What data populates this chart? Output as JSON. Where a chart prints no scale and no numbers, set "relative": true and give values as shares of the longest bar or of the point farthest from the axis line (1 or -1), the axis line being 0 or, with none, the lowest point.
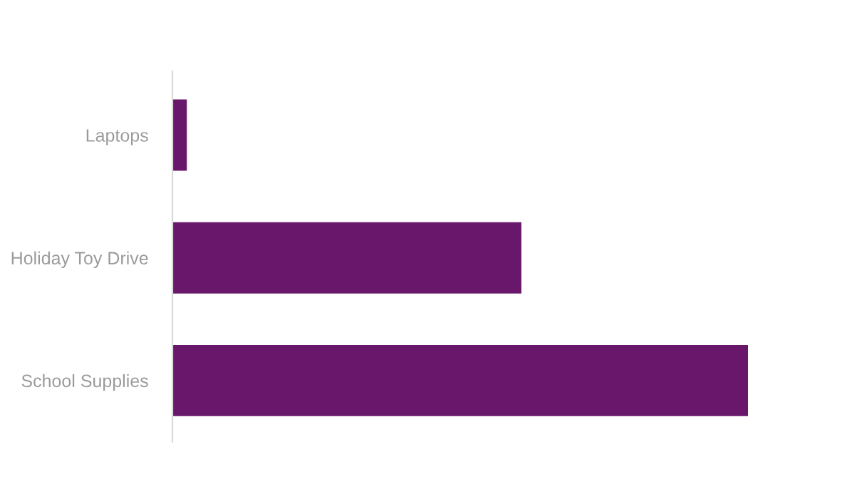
{
  "chart_data": {
    "type": "bar",
    "orientation": "horizontal",
    "relative": true,
    "categories": [
      "Laptops",
      "Holiday Toy Drive",
      "School Supplies"
    ],
    "values": [
      0.025,
      0.606,
      1
    ],
    "color": "#69176b",
    "grid": false,
    "legend": false
  }
}
